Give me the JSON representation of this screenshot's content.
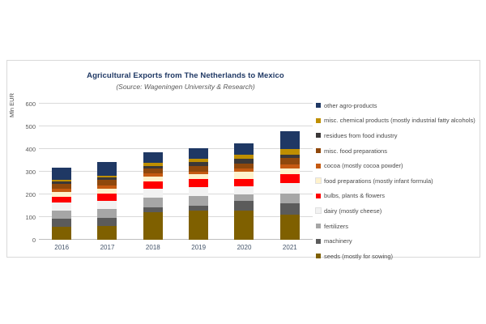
{
  "chart": {
    "title": "Agricultural Exports from The Netherlands to Mexico",
    "subtitle": "(Source: Wageningen University & Research)",
    "y_axis_title": "Mln EUR"
  },
  "colors": {
    "title": "#1F3864",
    "subtitle": "#595959",
    "gridline": "#D9D9D9",
    "axis_text": "#595959",
    "category_text": "#44546A"
  },
  "chart_data": {
    "type": "bar",
    "stacked": true,
    "title": "Agricultural Exports from The Netherlands to Mexico",
    "subtitle": "(Source: Wageningen University & Research)",
    "ylabel": "Mln EUR",
    "xlabel": "",
    "ylim": [
      0,
      600
    ],
    "yticks": [
      0,
      100,
      200,
      300,
      400,
      500,
      600
    ],
    "grid": true,
    "legend_position": "right",
    "legend_order_note": "legend lists series top-of-stack first; series below are listed bottom-of-stack first",
    "categories": [
      "2016",
      "2017",
      "2018",
      "2019",
      "2020",
      "2021"
    ],
    "series": [
      {
        "name": "seeds (mostly for sowing)",
        "color": "#7F6000",
        "values": [
          57,
          62,
          120,
          130,
          130,
          112
        ]
      },
      {
        "name": "machinery",
        "color": "#5B5B5B",
        "values": [
          35,
          35,
          24,
          20,
          40,
          48
        ]
      },
      {
        "name": "fertilizers",
        "color": "#A6A6A6",
        "values": [
          38,
          39,
          43,
          44,
          30,
          45
        ]
      },
      {
        "name": "dairy (mostly cheese)",
        "color": "#F2F2F2",
        "values": [
          33,
          35,
          38,
          40,
          35,
          44
        ]
      },
      {
        "name": "bulbs, plants & flowers",
        "color": "#FF0000",
        "values": [
          28,
          32,
          33,
          35,
          33,
          40
        ]
      },
      {
        "name": "food preparations (mostly infant formula)",
        "color": "#FFF2CC",
        "values": [
          19,
          21,
          21,
          19,
          32,
          25
        ]
      },
      {
        "name": "cocoa (mostly cocoa powder)",
        "color": "#C55A11",
        "values": [
          14,
          14,
          14,
          14,
          14,
          18
        ]
      },
      {
        "name": "misc. food preparations",
        "color": "#8F480C",
        "values": [
          24,
          27,
          21,
          24,
          22,
          28
        ]
      },
      {
        "name": "residues from food industry",
        "color": "#3B3838",
        "values": [
          10,
          9,
          12,
          18,
          20,
          15
        ]
      },
      {
        "name": "misc. chemical products (mostly industrial fatty alcohols)",
        "color": "#BF8F00",
        "values": [
          8,
          9,
          14,
          12,
          18,
          25
        ]
      },
      {
        "name": "other agro-products",
        "color": "#1F3864",
        "values": [
          51,
          59,
          47,
          47,
          50,
          80
        ]
      }
    ],
    "totals_approx": [
      317,
      342,
      387,
      403,
      424,
      480
    ]
  }
}
